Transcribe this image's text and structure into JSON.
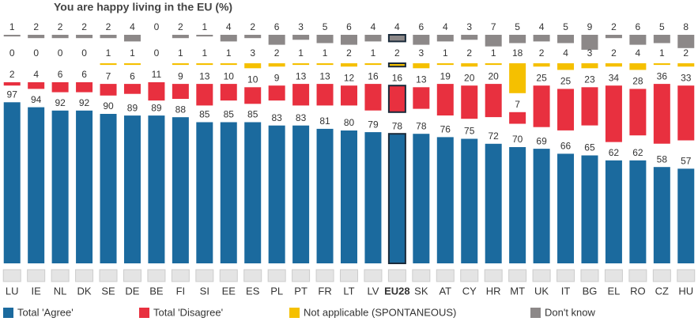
{
  "chart_data": {
    "type": "bar_rows",
    "title": "You are happy living in the EU  (%)",
    "categories": [
      "LU",
      "IE",
      "NL",
      "DK",
      "SE",
      "DE",
      "BE",
      "FI",
      "SI",
      "EE",
      "ES",
      "PL",
      "PT",
      "FR",
      "LT",
      "LV",
      "EU28",
      "SK",
      "AT",
      "CY",
      "HR",
      "MT",
      "UK",
      "IT",
      "BG",
      "EL",
      "RO",
      "CZ",
      "HU"
    ],
    "highlight": "EU28",
    "series": [
      {
        "name": "Total 'Agree'",
        "color": "#1b6a9e",
        "values": [
          97,
          94,
          92,
          92,
          90,
          89,
          89,
          88,
          85,
          85,
          85,
          83,
          83,
          81,
          80,
          79,
          78,
          78,
          76,
          75,
          72,
          70,
          69,
          66,
          65,
          62,
          62,
          58,
          57
        ]
      },
      {
        "name": "Total 'Disagree'",
        "color": "#e8303f",
        "values": [
          2,
          4,
          6,
          6,
          7,
          6,
          11,
          9,
          13,
          10,
          10,
          9,
          13,
          13,
          12,
          16,
          16,
          13,
          19,
          20,
          20,
          7,
          25,
          25,
          23,
          34,
          28,
          36,
          33
        ]
      },
      {
        "name": "Not applicable (SPONTANEOUS)",
        "color": "#f5c000",
        "values": [
          0,
          0,
          0,
          0,
          1,
          1,
          0,
          1,
          1,
          1,
          3,
          2,
          1,
          1,
          2,
          1,
          2,
          3,
          1,
          2,
          1,
          18,
          2,
          4,
          3,
          2,
          4,
          1,
          2
        ]
      },
      {
        "name": "Don't know",
        "color": "#8c8888",
        "values": [
          1,
          2,
          2,
          2,
          2,
          4,
          0,
          2,
          1,
          4,
          2,
          6,
          3,
          5,
          6,
          4,
          4,
          6,
          4,
          3,
          7,
          5,
          4,
          5,
          9,
          2,
          6,
          5,
          8
        ]
      }
    ]
  }
}
